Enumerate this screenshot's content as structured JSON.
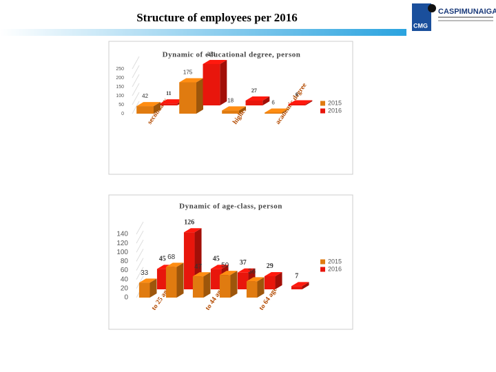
{
  "title": "Structure of employees per 2016",
  "logo": {
    "name": "CASPIMUNAIGAS",
    "abbr": "CMG"
  },
  "chart_data": [
    {
      "type": "bar3d",
      "title": "Dynamic of educational degree, person",
      "categories": [
        "secondary",
        null,
        "higher",
        "academic degree"
      ],
      "series": [
        {
          "name": "2015",
          "color": "#e07b10",
          "values": [
            42,
            175,
            18,
            6
          ]
        },
        {
          "name": "2016",
          "color": "#e8160c",
          "values": [
            11,
            231,
            27,
            6
          ]
        }
      ],
      "ylim": [
        0,
        250
      ],
      "yticks": [
        0,
        50,
        100,
        150,
        200,
        250
      ],
      "grid": true,
      "legend": "right"
    },
    {
      "type": "bar3d",
      "title": "Dynamic of age-class, person",
      "categories": [
        "to 25 age",
        null,
        "to 44 age",
        null,
        "to 64 age",
        null
      ],
      "series": [
        {
          "name": "2015",
          "color": "#e07b10",
          "values": [
            33,
            68,
            47,
            50,
            36,
            null
          ]
        },
        {
          "name": "2016",
          "color": "#e8160c",
          "values": [
            45,
            126,
            45,
            37,
            29,
            7
          ]
        }
      ],
      "ylim": [
        0,
        140
      ],
      "yticks": [
        0,
        20,
        40,
        60,
        80,
        100,
        120,
        140
      ],
      "grid": true,
      "legend": "right"
    }
  ]
}
